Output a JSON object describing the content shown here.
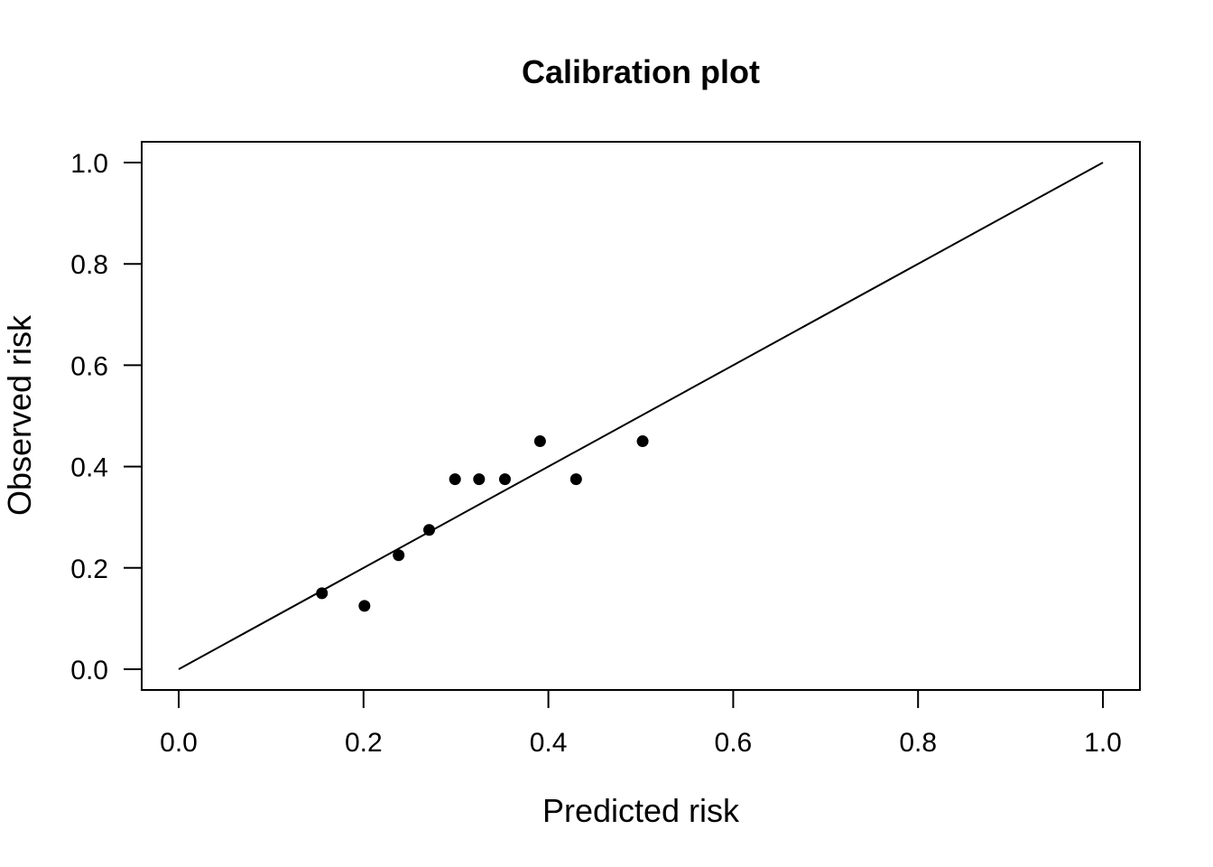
{
  "chart_data": {
    "type": "scatter",
    "title": "Calibration plot",
    "xlabel": "Predicted risk",
    "ylabel": "Observed risk",
    "xlim": [
      0.0,
      1.0
    ],
    "ylim": [
      0.0,
      1.0
    ],
    "xticks": [
      "0.0",
      "0.2",
      "0.4",
      "0.6",
      "0.8",
      "1.0"
    ],
    "yticks": [
      "0.0",
      "0.2",
      "0.4",
      "0.6",
      "0.8",
      "1.0"
    ],
    "grid": false,
    "reference_line": {
      "x": [
        0.0,
        1.0
      ],
      "y": [
        0.0,
        1.0
      ]
    },
    "series": [
      {
        "points": [
          {
            "x": 0.155,
            "y": 0.15
          },
          {
            "x": 0.201,
            "y": 0.125
          },
          {
            "x": 0.238,
            "y": 0.225
          },
          {
            "x": 0.271,
            "y": 0.275
          },
          {
            "x": 0.299,
            "y": 0.375
          },
          {
            "x": 0.325,
            "y": 0.375
          },
          {
            "x": 0.353,
            "y": 0.375
          },
          {
            "x": 0.391,
            "y": 0.45
          },
          {
            "x": 0.43,
            "y": 0.375
          },
          {
            "x": 0.502,
            "y": 0.45
          }
        ],
        "color": "#000000"
      }
    ]
  }
}
